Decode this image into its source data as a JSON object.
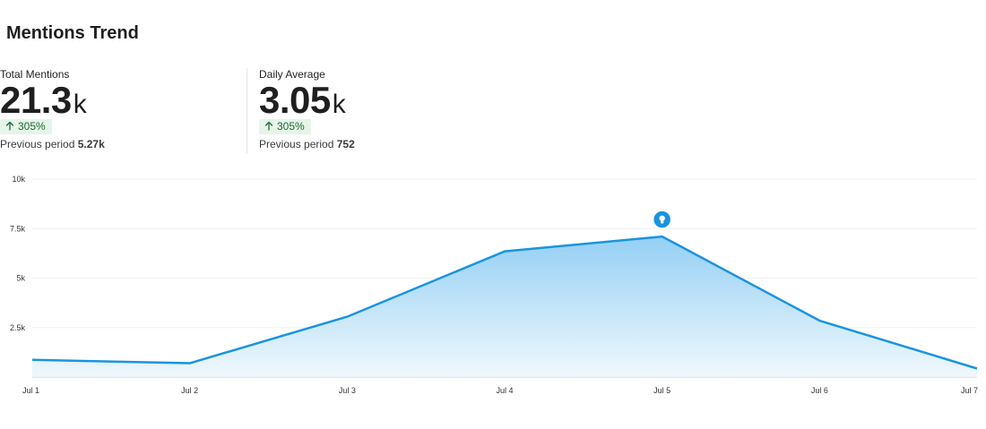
{
  "title": "Mentions Trend",
  "stats": [
    {
      "label": "Total Mentions",
      "value": "21.3",
      "unit": "k",
      "change": "305%",
      "change_direction": "up",
      "previous_label": "Previous period",
      "previous_value": "5.27k"
    },
    {
      "label": "Daily Average",
      "value": "3.05",
      "unit": "k",
      "change": "305%",
      "change_direction": "up",
      "previous_label": "Previous period",
      "previous_value": "752"
    }
  ],
  "colors": {
    "line": "#1a94e0",
    "area_top": "#8ecdf4",
    "area_bottom": "#eef7fd",
    "badge_bg": "#e6f4ea",
    "badge_text": "#1e6b34",
    "marker": "#1a94e0"
  },
  "marker": {
    "icon": "lightbulb-icon",
    "category": "Jul 5"
  },
  "chart_data": {
    "type": "area",
    "categories": [
      "Jul 1",
      "Jul 2",
      "Jul 3",
      "Jul 4",
      "Jul 5",
      "Jul 6",
      "Jul 7"
    ],
    "values": [
      870,
      700,
      3050,
      6350,
      7100,
      2850,
      430
    ],
    "ylim": [
      0,
      10000
    ],
    "yticks": [
      2500,
      5000,
      7500,
      10000
    ],
    "ytick_labels": [
      "2.5k",
      "5k",
      "7.5k",
      "10k"
    ],
    "grid": true,
    "legend": "none"
  }
}
